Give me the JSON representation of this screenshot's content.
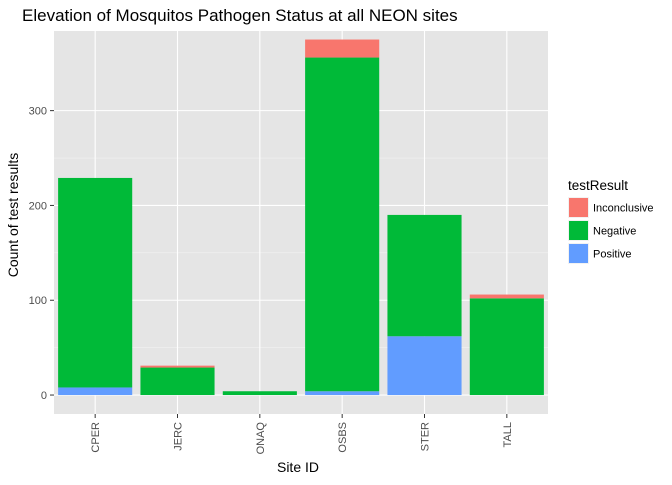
{
  "chart_data": {
    "type": "bar",
    "stacked": true,
    "title": "Elevation of Mosquitos Pathogen Status at all NEON sites",
    "xlabel": "Site ID",
    "ylabel": "Count of test results",
    "categories": [
      "CPER",
      "JERC",
      "ONAQ",
      "OSBS",
      "STER",
      "TALL"
    ],
    "series": [
      {
        "name": "Positive",
        "color": "#619CFF",
        "values": [
          8,
          0,
          0,
          4,
          62,
          0
        ]
      },
      {
        "name": "Negative",
        "color": "#00BA38",
        "values": [
          221,
          29,
          4,
          352,
          128,
          102
        ]
      },
      {
        "name": "Inconclusive",
        "color": "#F8766D",
        "values": [
          0,
          2,
          0,
          19,
          0,
          4
        ]
      }
    ],
    "ylim": [
      -20,
      384
    ],
    "yticks": [
      0,
      100,
      200,
      300
    ],
    "grid": true,
    "panel_background": "#E5E5E5",
    "legend": {
      "title": "testResult",
      "position": "right",
      "entries": [
        {
          "label": "Inconclusive",
          "color": "#F8766D"
        },
        {
          "label": "Negative",
          "color": "#00BA38"
        },
        {
          "label": "Positive",
          "color": "#619CFF"
        }
      ]
    }
  }
}
